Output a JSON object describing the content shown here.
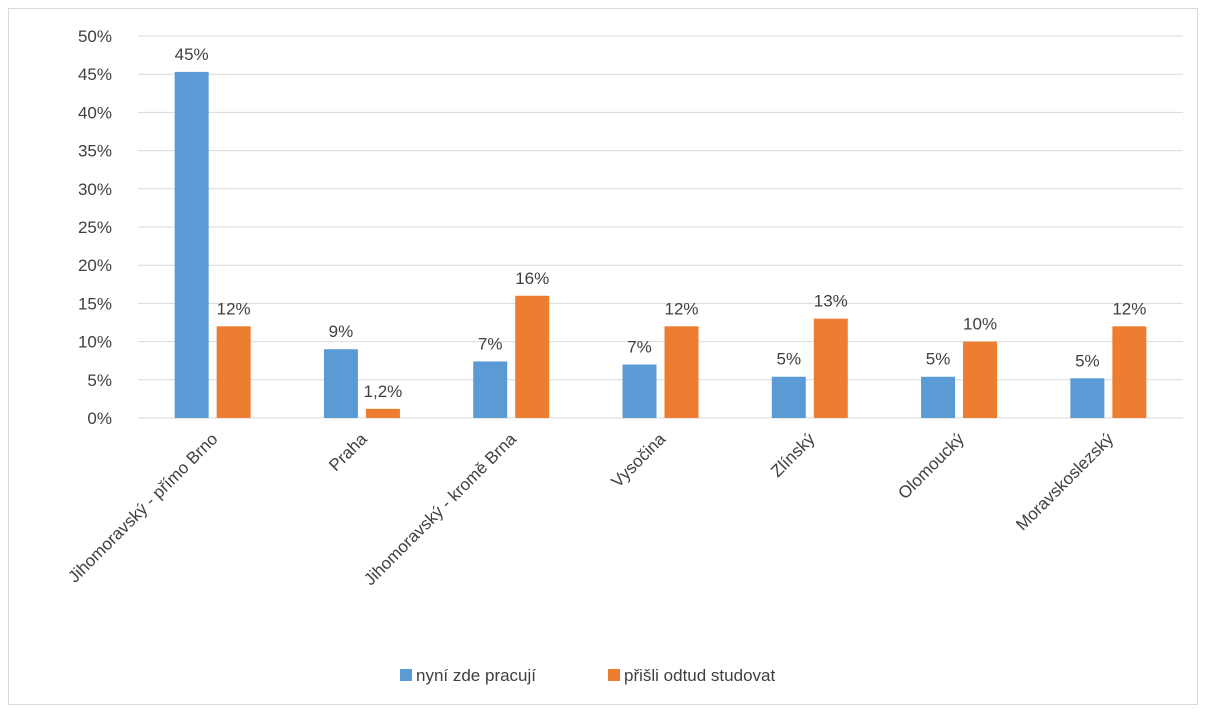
{
  "chart_data": {
    "type": "bar",
    "categories": [
      "Jihomoravský - přímo Brno",
      "Praha",
      "Jihomoravský - kromě Brna",
      "Vysočina",
      "Zlínský",
      "Olomoucký",
      "Moravskoslezský"
    ],
    "series": [
      {
        "name": "nyní zde pracují",
        "color": "#5b9bd5",
        "values": [
          45.3,
          9.0,
          7.4,
          7.0,
          5.4,
          5.4,
          5.2
        ],
        "labels": [
          "45%",
          "9%",
          "7%",
          "7%",
          "5%",
          "5%",
          "5%"
        ]
      },
      {
        "name": "přišli odtud studovat",
        "color": "#ed7d31",
        "values": [
          12.0,
          1.2,
          16.0,
          12.0,
          13.0,
          10.0,
          12.0
        ],
        "labels": [
          "12%",
          "1,2%",
          "16%",
          "12%",
          "13%",
          "10%",
          "12%"
        ]
      }
    ],
    "yticks": [
      "0%",
      "5%",
      "10%",
      "15%",
      "20%",
      "25%",
      "30%",
      "35%",
      "40%",
      "45%",
      "50%"
    ],
    "ylim": [
      0,
      50
    ],
    "grid": true,
    "legend": "bottom",
    "title": "",
    "xlabel": "",
    "ylabel": ""
  }
}
